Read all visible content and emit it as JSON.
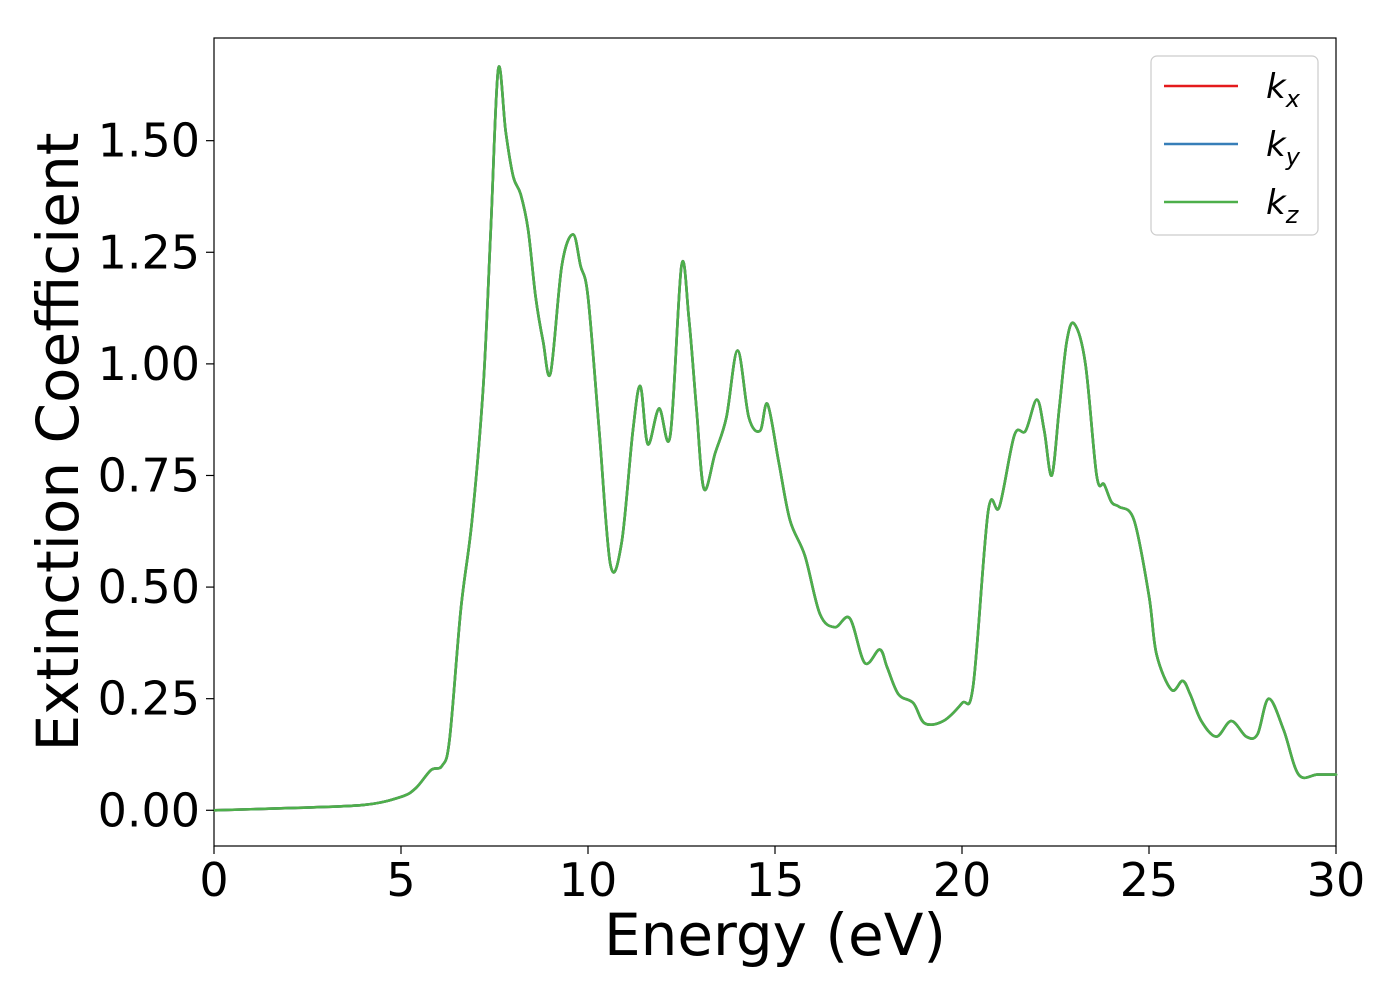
{
  "chart_data": {
    "type": "line",
    "xlabel": "Energy (eV)",
    "ylabel": "Extinction Coefficient",
    "xlim": [
      0,
      30
    ],
    "ylim": [
      -0.08,
      1.73
    ],
    "xticks": [
      0,
      5,
      10,
      15,
      20,
      25,
      30
    ],
    "xtick_labels": [
      "0",
      "5",
      "10",
      "15",
      "20",
      "25",
      "30"
    ],
    "yticks": [
      0.0,
      0.25,
      0.5,
      0.75,
      1.0,
      1.25,
      1.5
    ],
    "ytick_labels": [
      "0.00",
      "0.25",
      "0.50",
      "0.75",
      "1.00",
      "1.25",
      "1.50"
    ],
    "grid": false,
    "legend_position": "top-right",
    "series": [
      {
        "name": "k",
        "subscript": "x",
        "color": "#e41a1c",
        "x": [
          0,
          2,
          4,
          5,
          5.4,
          5.8,
          6.1,
          6.3,
          6.6,
          6.9,
          7.2,
          7.4,
          7.6,
          7.8,
          8.0,
          8.2,
          8.4,
          8.6,
          8.8,
          9.0,
          9.3,
          9.6,
          9.8,
          10.0,
          10.3,
          10.6,
          10.9,
          11.2,
          11.4,
          11.6,
          11.9,
          12.2,
          12.5,
          12.7,
          12.9,
          13.1,
          13.4,
          13.7,
          14.0,
          14.3,
          14.6,
          14.8,
          15.1,
          15.4,
          15.8,
          16.2,
          16.6,
          17.0,
          17.4,
          17.8,
          18.0,
          18.3,
          18.7,
          19.0,
          19.5,
          20.0,
          20.3,
          20.7,
          21.0,
          21.4,
          21.7,
          22.0,
          22.2,
          22.4,
          22.6,
          22.8,
          23.0,
          23.3,
          23.6,
          23.8,
          24.0,
          24.2,
          24.6,
          25.0,
          25.2,
          25.6,
          25.9,
          26.1,
          26.4,
          26.8,
          27.2,
          27.6,
          27.9,
          28.2,
          28.6,
          29.0,
          29.5,
          30.0
        ],
        "y": [
          0.0,
          0.005,
          0.012,
          0.03,
          0.05,
          0.09,
          0.1,
          0.16,
          0.45,
          0.65,
          0.95,
          1.3,
          1.66,
          1.52,
          1.42,
          1.38,
          1.3,
          1.15,
          1.05,
          0.98,
          1.22,
          1.29,
          1.22,
          1.15,
          0.85,
          0.55,
          0.6,
          0.85,
          0.95,
          0.82,
          0.9,
          0.84,
          1.22,
          1.1,
          0.9,
          0.72,
          0.8,
          0.88,
          1.03,
          0.88,
          0.85,
          0.91,
          0.78,
          0.65,
          0.57,
          0.44,
          0.41,
          0.43,
          0.33,
          0.36,
          0.32,
          0.26,
          0.24,
          0.195,
          0.2,
          0.24,
          0.28,
          0.67,
          0.68,
          0.84,
          0.85,
          0.92,
          0.85,
          0.75,
          0.9,
          1.05,
          1.09,
          1.0,
          0.75,
          0.73,
          0.69,
          0.68,
          0.65,
          0.48,
          0.35,
          0.27,
          0.29,
          0.26,
          0.2,
          0.165,
          0.2,
          0.165,
          0.17,
          0.25,
          0.18,
          0.08,
          0.08,
          0.08
        ]
      },
      {
        "name": "k",
        "subscript": "y",
        "color": "#377eb8",
        "x": [
          0,
          2,
          4,
          5,
          5.4,
          5.8,
          6.1,
          6.3,
          6.6,
          6.9,
          7.2,
          7.4,
          7.6,
          7.8,
          8.0,
          8.2,
          8.4,
          8.6,
          8.8,
          9.0,
          9.3,
          9.6,
          9.8,
          10.0,
          10.3,
          10.6,
          10.9,
          11.2,
          11.4,
          11.6,
          11.9,
          12.2,
          12.5,
          12.7,
          12.9,
          13.1,
          13.4,
          13.7,
          14.0,
          14.3,
          14.6,
          14.8,
          15.1,
          15.4,
          15.8,
          16.2,
          16.6,
          17.0,
          17.4,
          17.8,
          18.0,
          18.3,
          18.7,
          19.0,
          19.5,
          20.0,
          20.3,
          20.7,
          21.0,
          21.4,
          21.7,
          22.0,
          22.2,
          22.4,
          22.6,
          22.8,
          23.0,
          23.3,
          23.6,
          23.8,
          24.0,
          24.2,
          24.6,
          25.0,
          25.2,
          25.6,
          25.9,
          26.1,
          26.4,
          26.8,
          27.2,
          27.6,
          27.9,
          28.2,
          28.6,
          29.0,
          29.5,
          30.0
        ],
        "y": [
          0.0,
          0.005,
          0.012,
          0.03,
          0.05,
          0.09,
          0.1,
          0.16,
          0.45,
          0.65,
          0.95,
          1.3,
          1.66,
          1.52,
          1.42,
          1.38,
          1.3,
          1.15,
          1.05,
          0.98,
          1.22,
          1.29,
          1.22,
          1.15,
          0.85,
          0.55,
          0.6,
          0.85,
          0.95,
          0.82,
          0.9,
          0.84,
          1.22,
          1.1,
          0.9,
          0.72,
          0.8,
          0.88,
          1.03,
          0.88,
          0.85,
          0.91,
          0.78,
          0.65,
          0.57,
          0.44,
          0.41,
          0.43,
          0.33,
          0.36,
          0.32,
          0.26,
          0.24,
          0.195,
          0.2,
          0.24,
          0.28,
          0.67,
          0.68,
          0.84,
          0.85,
          0.92,
          0.85,
          0.75,
          0.9,
          1.05,
          1.09,
          1.0,
          0.75,
          0.73,
          0.69,
          0.68,
          0.65,
          0.48,
          0.35,
          0.27,
          0.29,
          0.26,
          0.2,
          0.165,
          0.2,
          0.165,
          0.17,
          0.25,
          0.18,
          0.08,
          0.08,
          0.08
        ]
      },
      {
        "name": "k",
        "subscript": "z",
        "color": "#4daf4a",
        "x": [
          0,
          2,
          4,
          5,
          5.4,
          5.8,
          6.1,
          6.3,
          6.6,
          6.9,
          7.2,
          7.4,
          7.6,
          7.8,
          8.0,
          8.2,
          8.4,
          8.6,
          8.8,
          9.0,
          9.3,
          9.6,
          9.8,
          10.0,
          10.3,
          10.6,
          10.9,
          11.2,
          11.4,
          11.6,
          11.9,
          12.2,
          12.5,
          12.7,
          12.9,
          13.1,
          13.4,
          13.7,
          14.0,
          14.3,
          14.6,
          14.8,
          15.1,
          15.4,
          15.8,
          16.2,
          16.6,
          17.0,
          17.4,
          17.8,
          18.0,
          18.3,
          18.7,
          19.0,
          19.5,
          20.0,
          20.3,
          20.7,
          21.0,
          21.4,
          21.7,
          22.0,
          22.2,
          22.4,
          22.6,
          22.8,
          23.0,
          23.3,
          23.6,
          23.8,
          24.0,
          24.2,
          24.6,
          25.0,
          25.2,
          25.6,
          25.9,
          26.1,
          26.4,
          26.8,
          27.2,
          27.6,
          27.9,
          28.2,
          28.6,
          29.0,
          29.5,
          30.0
        ],
        "y": [
          0.0,
          0.005,
          0.012,
          0.03,
          0.05,
          0.09,
          0.1,
          0.16,
          0.45,
          0.65,
          0.95,
          1.3,
          1.66,
          1.52,
          1.42,
          1.38,
          1.3,
          1.15,
          1.05,
          0.98,
          1.22,
          1.29,
          1.22,
          1.15,
          0.85,
          0.55,
          0.6,
          0.85,
          0.95,
          0.82,
          0.9,
          0.84,
          1.22,
          1.1,
          0.9,
          0.72,
          0.8,
          0.88,
          1.03,
          0.88,
          0.85,
          0.91,
          0.78,
          0.65,
          0.57,
          0.44,
          0.41,
          0.43,
          0.33,
          0.36,
          0.32,
          0.26,
          0.24,
          0.195,
          0.2,
          0.24,
          0.28,
          0.67,
          0.68,
          0.84,
          0.85,
          0.92,
          0.85,
          0.75,
          0.9,
          1.05,
          1.09,
          1.0,
          0.75,
          0.73,
          0.69,
          0.68,
          0.65,
          0.48,
          0.35,
          0.27,
          0.29,
          0.26,
          0.2,
          0.165,
          0.2,
          0.165,
          0.17,
          0.25,
          0.18,
          0.08,
          0.08,
          0.08
        ]
      }
    ]
  }
}
